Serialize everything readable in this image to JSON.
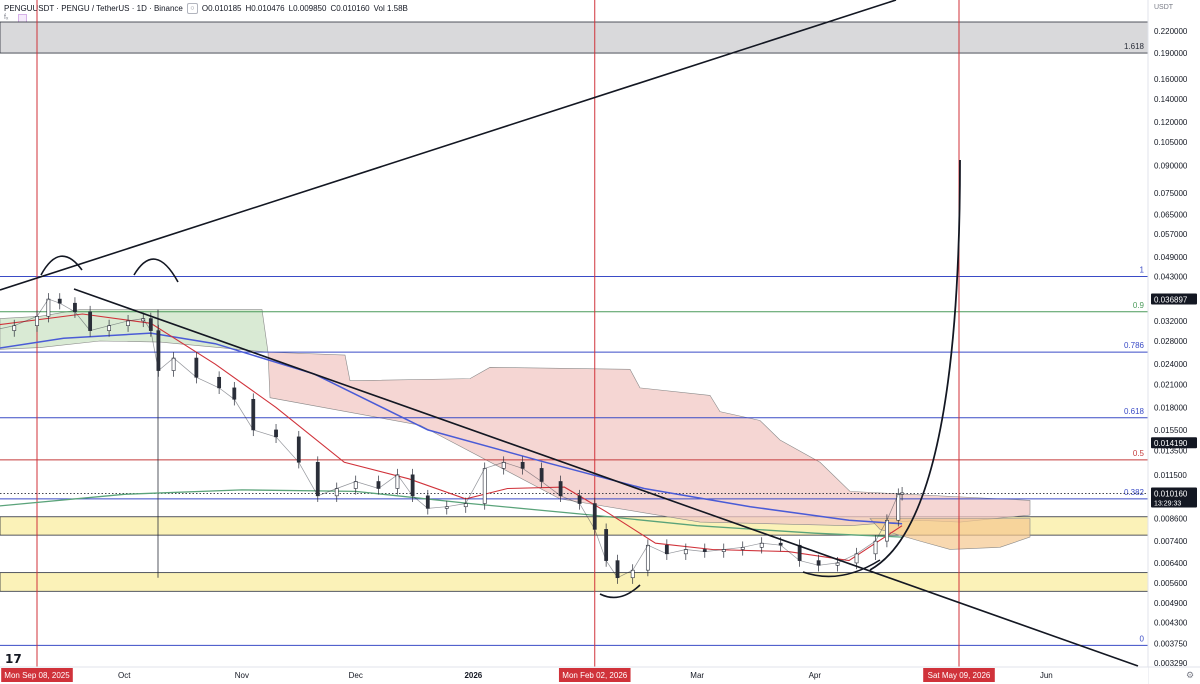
{
  "legend": {
    "symbol": "PENGUUSDT · PENGU / TetherUS · 1D · Binance",
    "open": "O0.010185",
    "high": "H0.010476",
    "low": "L0.009850",
    "close": "C0.010160",
    "volume": "Vol 1.58B"
  },
  "ui": {
    "fx_label": "fₓ",
    "tv_logo": "17",
    "settings_icon": "⚙"
  },
  "chart_data": {
    "type": "line",
    "currency": "USDT",
    "scale": "log",
    "price_axis_labels": [
      "0.220000",
      "0.190000",
      "0.160000",
      "0.140000",
      "0.120000",
      "0.105000",
      "0.090000",
      "0.075000",
      "0.065000",
      "0.057000",
      "0.049000",
      "0.043000",
      "0.032000",
      "0.028000",
      "0.024000",
      "0.021000",
      "0.018000",
      "0.015500",
      "0.013500",
      "0.011500",
      "0.008600",
      "0.007400",
      "0.006400",
      "0.005600",
      "0.004900",
      "0.004300",
      "0.003750",
      "0.003290"
    ],
    "time_axis_labels": [
      {
        "label": "Oct",
        "type": "month"
      },
      {
        "label": "Nov",
        "type": "month"
      },
      {
        "label": "Dec",
        "type": "month"
      },
      {
        "label": "2026",
        "type": "year"
      },
      {
        "label": "Mar",
        "type": "month"
      },
      {
        "label": "Apr",
        "type": "month"
      },
      {
        "label": "Jun",
        "type": "month"
      }
    ],
    "date_markers": [
      {
        "label": "Mon Sep 08, 2025",
        "x": "2025-09-08"
      },
      {
        "label": "Mon Feb 02, 2026",
        "x": "2026-02-02"
      },
      {
        "label": "Sat May 09, 2026",
        "x": "2026-05-09"
      }
    ],
    "price_tags": [
      {
        "value": "0.036897",
        "label": "",
        "style": "dark"
      },
      {
        "value": "0.014190",
        "label": "",
        "style": "dark"
      },
      {
        "value": "0.010160",
        "label": "13:29:33",
        "style": "dark"
      }
    ],
    "fib_levels": [
      {
        "ratio": "1.618",
        "price": 0.19,
        "color": "#2a2e39"
      },
      {
        "ratio": "1",
        "price": 0.043,
        "color": "#3a4bc6"
      },
      {
        "ratio": "0.9",
        "price": 0.034,
        "color": "#4a9a5a"
      },
      {
        "ratio": "0.786",
        "price": 0.026,
        "color": "#3a4bc6"
      },
      {
        "ratio": "0.618",
        "price": 0.0168,
        "color": "#3a4bc6"
      },
      {
        "ratio": "0.5",
        "price": 0.0127,
        "color": "#c43b3b"
      },
      {
        "ratio": "0.382",
        "price": 0.0098,
        "color": "#3a4bc6"
      },
      {
        "ratio": "0",
        "price": 0.0037,
        "color": "#3a4bc6"
      }
    ],
    "zones": [
      {
        "name": "gray resistance zone",
        "from": 0.19,
        "to": 0.24
      },
      {
        "name": "upper support zone",
        "from": 0.0077,
        "to": 0.0087
      },
      {
        "name": "lower support zone",
        "from": 0.0053,
        "to": 0.006
      }
    ],
    "close_series": [
      [
        "2025-08-27",
        0.03
      ],
      [
        "2025-09-02",
        0.031
      ],
      [
        "2025-09-08",
        0.033
      ],
      [
        "2025-09-11",
        0.037
      ],
      [
        "2025-09-14",
        0.036
      ],
      [
        "2025-09-18",
        0.034
      ],
      [
        "2025-09-22",
        0.03
      ],
      [
        "2025-09-27",
        0.031
      ],
      [
        "2025-10-02",
        0.032
      ],
      [
        "2025-10-06",
        0.0325
      ],
      [
        "2025-10-08",
        0.03
      ],
      [
        "2025-10-10",
        0.023
      ],
      [
        "2025-10-14",
        0.025
      ],
      [
        "2025-10-20",
        0.022
      ],
      [
        "2025-10-26",
        0.0205
      ],
      [
        "2025-10-30",
        0.019
      ],
      [
        "2025-11-04",
        0.0155
      ],
      [
        "2025-11-10",
        0.0148
      ],
      [
        "2025-11-16",
        0.0125
      ],
      [
        "2025-11-21",
        0.01
      ],
      [
        "2025-11-26",
        0.0105
      ],
      [
        "2025-12-01",
        0.011
      ],
      [
        "2025-12-07",
        0.0105
      ],
      [
        "2025-12-12",
        0.0115
      ],
      [
        "2025-12-16",
        0.01
      ],
      [
        "2025-12-20",
        0.0092
      ],
      [
        "2025-12-25",
        0.0093
      ],
      [
        "2025-12-30",
        0.0095
      ],
      [
        "2026-01-04",
        0.012
      ],
      [
        "2026-01-09",
        0.0125
      ],
      [
        "2026-01-14",
        0.012
      ],
      [
        "2026-01-19",
        0.011
      ],
      [
        "2026-01-24",
        0.01
      ],
      [
        "2026-01-29",
        0.0095
      ],
      [
        "2026-02-02",
        0.008
      ],
      [
        "2026-02-05",
        0.0065
      ],
      [
        "2026-02-08",
        0.0058
      ],
      [
        "2026-02-12",
        0.0061
      ],
      [
        "2026-02-16",
        0.0072
      ],
      [
        "2026-02-21",
        0.0068
      ],
      [
        "2026-02-26",
        0.007
      ],
      [
        "2026-03-03",
        0.0069
      ],
      [
        "2026-03-08",
        0.007
      ],
      [
        "2026-03-13",
        0.0071
      ],
      [
        "2026-03-18",
        0.0073
      ],
      [
        "2026-03-23",
        0.0072
      ],
      [
        "2026-03-28",
        0.0065
      ],
      [
        "2026-04-02",
        0.0063
      ],
      [
        "2026-04-07",
        0.0064
      ],
      [
        "2026-04-12",
        0.0068
      ],
      [
        "2026-04-17",
        0.0074
      ],
      [
        "2026-04-20",
        0.0085
      ],
      [
        "2026-04-23",
        0.0101
      ],
      [
        "2026-04-24",
        0.0102
      ]
    ],
    "ema_fast": [
      [
        "2025-08-27",
        0.031
      ],
      [
        "2025-09-20",
        0.0335
      ],
      [
        "2025-10-08",
        0.0315
      ],
      [
        "2025-10-25",
        0.024
      ],
      [
        "2025-11-10",
        0.018
      ],
      [
        "2025-11-28",
        0.0125
      ],
      [
        "2025-12-15",
        0.0112
      ],
      [
        "2025-12-30",
        0.0098
      ],
      [
        "2026-01-10",
        0.0105
      ],
      [
        "2026-01-25",
        0.0106
      ],
      [
        "2026-02-05",
        0.009
      ],
      [
        "2026-02-18",
        0.0073
      ],
      [
        "2026-03-05",
        0.007
      ],
      [
        "2026-03-25",
        0.0069
      ],
      [
        "2026-04-10",
        0.0065
      ],
      [
        "2026-04-24",
        0.0082
      ]
    ],
    "ema_mid": [
      [
        "2025-08-27",
        0.0265
      ],
      [
        "2025-09-15",
        0.0285
      ],
      [
        "2025-10-08",
        0.0295
      ],
      [
        "2025-10-25",
        0.0275
      ],
      [
        "2025-11-20",
        0.0225
      ],
      [
        "2025-12-20",
        0.0155
      ],
      [
        "2026-01-20",
        0.0125
      ],
      [
        "2026-02-15",
        0.0105
      ],
      [
        "2026-03-15",
        0.0093
      ],
      [
        "2026-04-10",
        0.0085
      ],
      [
        "2026-04-24",
        0.0083
      ]
    ],
    "ema_slow": [
      [
        "2025-08-27",
        0.0093
      ],
      [
        "2025-10-01",
        0.0101
      ],
      [
        "2025-11-01",
        0.0104
      ],
      [
        "2025-12-01",
        0.0103
      ],
      [
        "2025-12-31",
        0.0095
      ],
      [
        "2026-02-01",
        0.0088
      ],
      [
        "2026-03-01",
        0.0082
      ],
      [
        "2026-04-01",
        0.0078
      ],
      [
        "2026-04-24",
        0.0076
      ]
    ]
  }
}
